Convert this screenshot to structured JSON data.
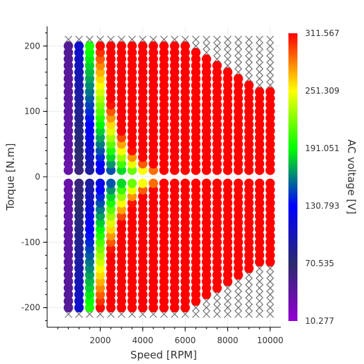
{
  "chart_data": {
    "type": "scatter",
    "xlabel": "Speed [RPM]",
    "ylabel": "Torque [N.m]",
    "colorbar_label": "AC voltage [V]",
    "xlim": [
      -500,
      10500
    ],
    "ylim": [
      -230,
      230
    ],
    "x_ticks": [
      2000,
      4000,
      6000,
      8000,
      10000
    ],
    "y_ticks": [
      -200,
      -100,
      0,
      100,
      200
    ],
    "x_tick_labels": [
      "2000",
      "4000",
      "6000",
      "8000",
      "10000"
    ],
    "y_tick_labels": [
      "-200",
      "-100",
      "0",
      "100",
      "200"
    ],
    "grid": true,
    "colormap": [
      "#9400d3",
      "#2b2b6e",
      "#0000ff",
      "#00ff00",
      "#ffff00",
      "#ff0000"
    ],
    "colorbar_range": [
      10.277,
      311.567
    ],
    "colorbar_ticks": [
      "311.567",
      "251.309",
      "191.051",
      "130.793",
      "70.535",
      "10.277"
    ],
    "speed_values": [
      500,
      1000,
      1500,
      2000,
      2500,
      3000,
      3500,
      4000,
      4500,
      5000,
      5500,
      6000,
      6500,
      7000,
      7500,
      8000,
      8500,
      9000,
      9500,
      10000
    ],
    "max_torque": [
      200,
      200,
      200,
      200,
      200,
      200,
      200,
      200,
      200,
      200,
      200,
      200,
      190,
      180,
      170,
      160,
      150,
      140,
      130,
      130
    ],
    "min_torque": [
      -200,
      -200,
      -200,
      -200,
      -200,
      -200,
      -200,
      -200,
      -200,
      -200,
      -200,
      -200,
      -190,
      -180,
      -170,
      -160,
      -150,
      -140,
      -130,
      -130
    ],
    "torque_step": 10,
    "infeasible_marker": "×",
    "infeasible_color": "#6e6e6e"
  }
}
